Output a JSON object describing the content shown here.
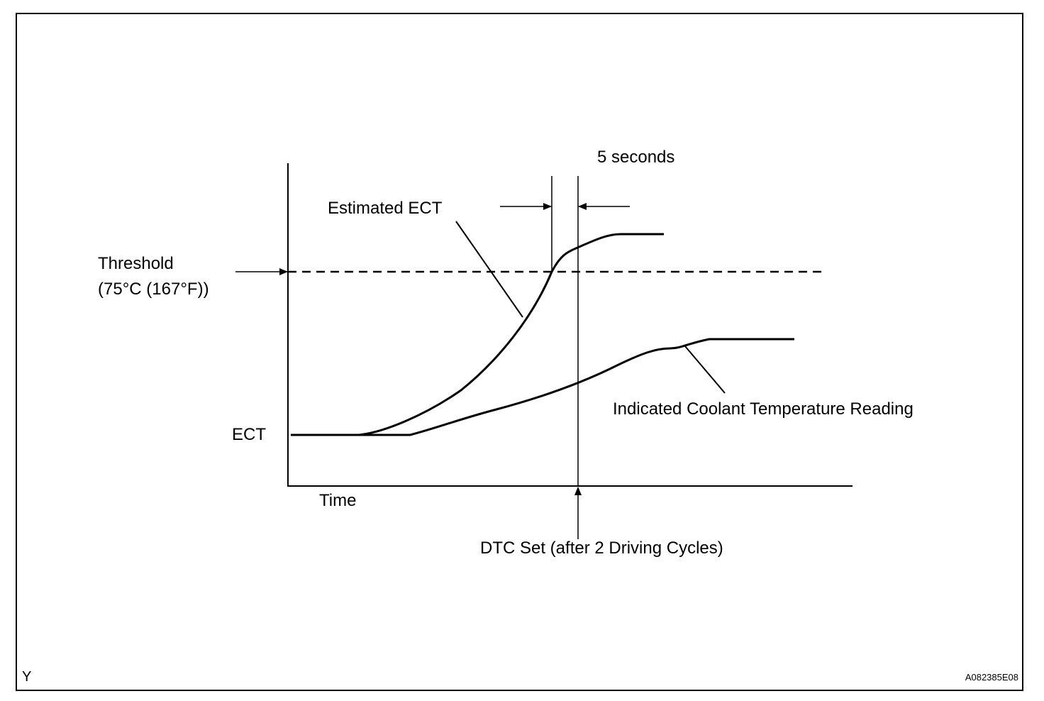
{
  "labels": {
    "five_seconds": "5 seconds",
    "estimated_ect": "Estimated ECT",
    "threshold_line1": "Threshold",
    "threshold_line2": "(75°C (167°F))",
    "ect": "ECT",
    "time": "Time",
    "indicated_reading": "Indicated Coolant Temperature Reading",
    "dtc_set": "DTC Set (after 2 Driving Cycles)",
    "corner_left": "Y",
    "figure_code": "A082385E08"
  },
  "colors": {
    "ink": "#000000",
    "background": "#ffffff"
  }
}
